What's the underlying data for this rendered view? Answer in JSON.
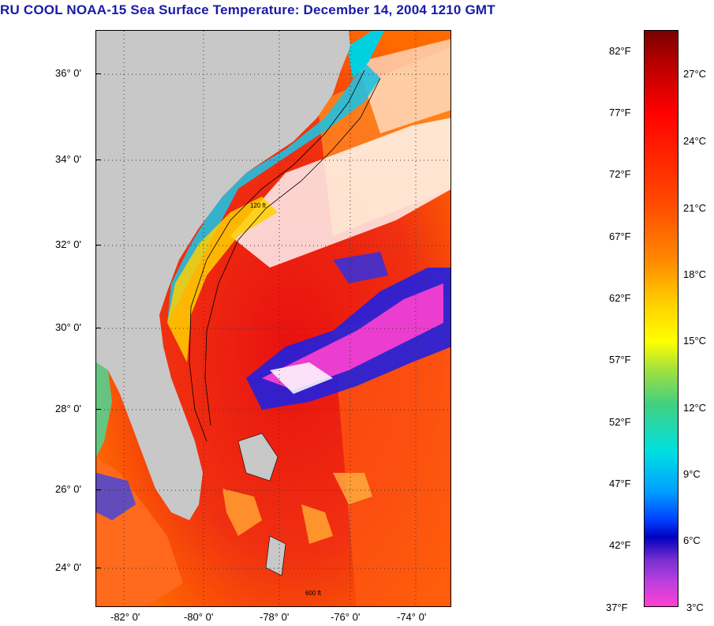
{
  "title": "RU COOL  NOAA-15  Sea Surface Temperature:  December 14, 2004 1210 GMT",
  "map": {
    "latitude_labels": [
      "36° 0'",
      "34° 0'",
      "32° 0'",
      "30° 0'",
      "28° 0'",
      "26° 0'",
      "24° 0'"
    ],
    "longitude_labels": [
      "-82° 0'",
      "-80° 0'",
      "-78° 0'",
      "-76° 0'",
      "-74° 0'"
    ],
    "land_color": "#c8c8c8",
    "contour_labels": [
      "120 ft",
      "600 ft"
    ]
  },
  "colorbar": {
    "fahrenheit_labels": [
      "82°F",
      "77°F",
      "72°F",
      "67°F",
      "62°F",
      "57°F",
      "52°F",
      "47°F",
      "42°F",
      "37°F"
    ],
    "celsius_labels": [
      "27°C",
      "24°C",
      "21°C",
      "18°C",
      "15°C",
      "12°C",
      "9°C",
      "6°C",
      "3°C"
    ]
  }
}
